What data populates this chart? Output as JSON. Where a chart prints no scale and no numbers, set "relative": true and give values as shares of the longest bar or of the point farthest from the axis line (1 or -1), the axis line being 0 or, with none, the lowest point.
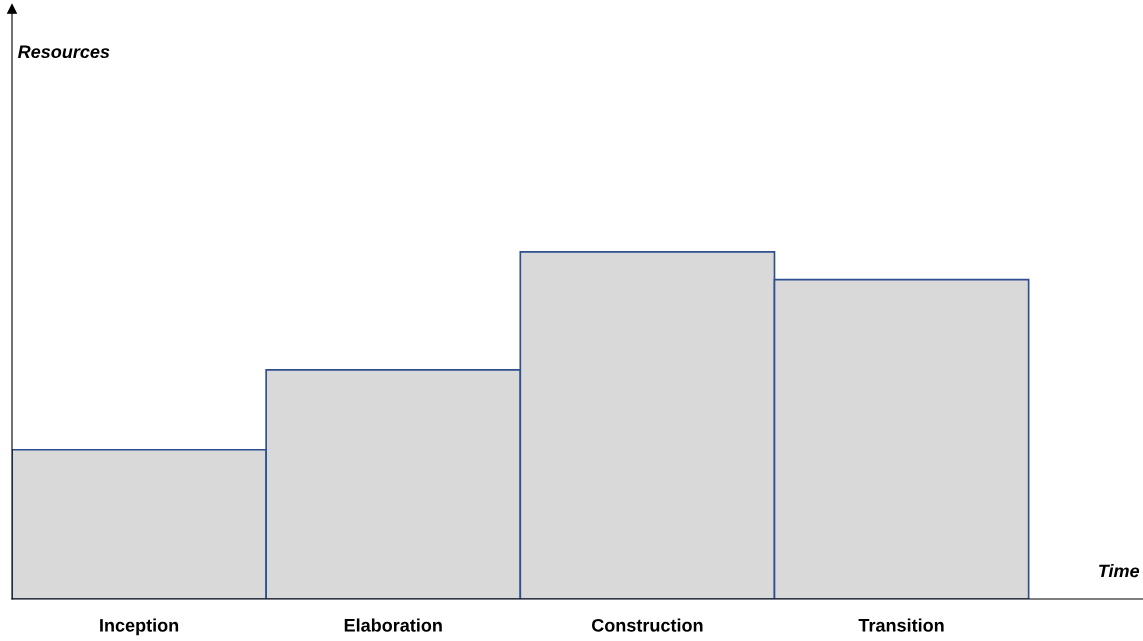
{
  "chart_data": {
    "type": "bar",
    "relative": true,
    "xlabel": "Time",
    "annotations": [
      "Resources"
    ],
    "categories": [
      "Inception",
      "Elaboration",
      "Construction",
      "Transition"
    ],
    "values": [
      0.43,
      0.66,
      1,
      0.92
    ],
    "color": "#d9d9d9",
    "grid": false,
    "legend": false
  }
}
